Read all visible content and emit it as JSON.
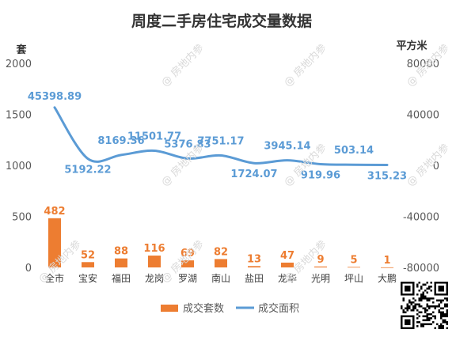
{
  "chart_data": {
    "type": "bar+line",
    "title": "周度二手房住宅成交量数据",
    "left_axis": {
      "unit_label": "套",
      "ticks": [
        "0",
        "500",
        "1000",
        "1500",
        "2000"
      ],
      "range": [
        0,
        2000
      ]
    },
    "right_axis": {
      "unit_label": "平方米",
      "ticks": [
        "-80000",
        "-40000",
        "0",
        "40000",
        "80000"
      ],
      "range": [
        -80000,
        80000
      ]
    },
    "categories": [
      "全市",
      "宝安",
      "福田",
      "龙岗",
      "罗湖",
      "南山",
      "盐田",
      "龙华",
      "光明",
      "坪山",
      "大鹏"
    ],
    "series": [
      {
        "name": "成交套数",
        "type": "bar",
        "axis": "left",
        "color": "#ED7D31",
        "values": [
          482,
          52,
          88,
          116,
          69,
          82,
          13,
          47,
          9,
          5,
          1
        ],
        "labels": [
          "482",
          "52",
          "88",
          "116",
          "69",
          "82",
          "13",
          "47",
          "9",
          "5",
          "1"
        ]
      },
      {
        "name": "成交面积",
        "type": "line",
        "axis": "right",
        "color": "#5B9BD5",
        "values": [
          45398.89,
          5192.22,
          8169.36,
          11501.77,
          5376.83,
          7751.17,
          1724.07,
          3945.14,
          919.96,
          503.14,
          315.23
        ],
        "labels": [
          "45398.89",
          "5192.22",
          "8169.36",
          "11501.77",
          "5376.83",
          "7751.17",
          "1724.07",
          "3945.14",
          "919.96",
          "503.14",
          "315.23"
        ]
      }
    ],
    "legend_position": "bottom",
    "gridlines": false
  },
  "watermark_text": "@ 房地内参"
}
